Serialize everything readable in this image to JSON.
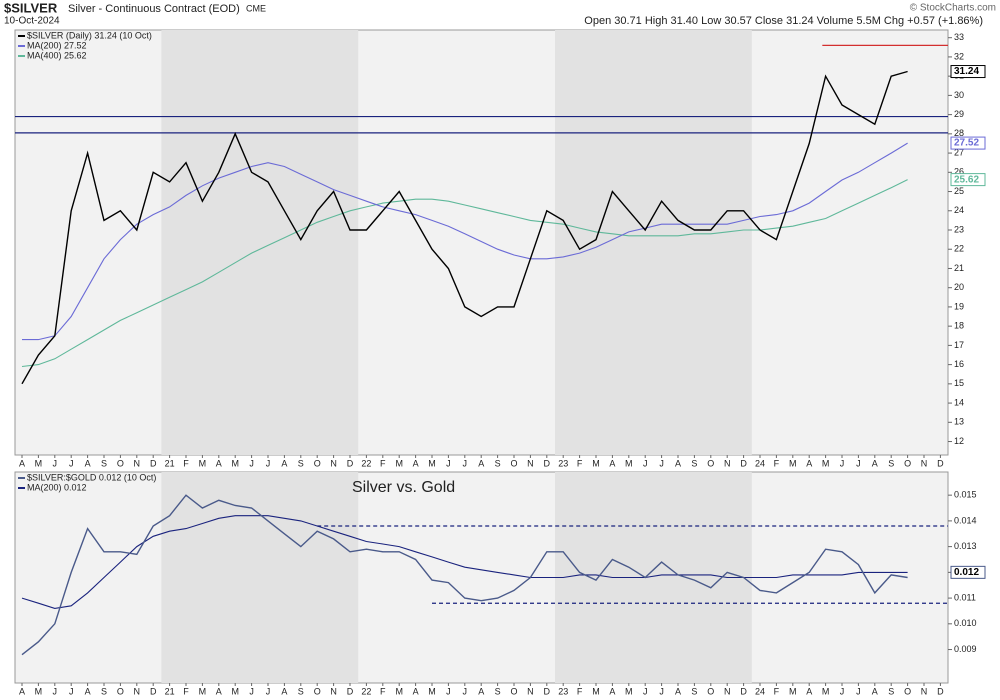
{
  "header": {
    "symbol": "$SILVER",
    "name": "Silver - Continuous Contract (EOD)",
    "exchange": "CME",
    "date": "10-Oct-2024",
    "quote": "Open 30.71  High 31.40  Low 30.57  Close 31.24  Volume 5.5M  Chg +0.57 (+1.86%)",
    "copyright": "© StockCharts.com"
  },
  "chart_data": [
    {
      "type": "line",
      "categories": [
        "A",
        "M",
        "J",
        "J",
        "A",
        "S",
        "O",
        "N",
        "D",
        "21",
        "F",
        "M",
        "A",
        "M",
        "J",
        "J",
        "A",
        "S",
        "O",
        "N",
        "D",
        "22",
        "F",
        "M",
        "A",
        "M",
        "J",
        "J",
        "A",
        "S",
        "O",
        "N",
        "D",
        "23",
        "F",
        "M",
        "A",
        "M",
        "J",
        "J",
        "A",
        "S",
        "O",
        "N",
        "D",
        "24",
        "F",
        "M",
        "A",
        "M",
        "J",
        "J",
        "A",
        "S",
        "O",
        "N",
        "D"
      ],
      "series": [
        {
          "name": "$SILVER (Daily) 31.24 (10 Oct)",
          "color": "#000000",
          "values": [
            15,
            16.5,
            17.5,
            24,
            27,
            23.5,
            24,
            23,
            26,
            25.5,
            26.5,
            24.5,
            26,
            28,
            26,
            25.5,
            24,
            22.5,
            24,
            25,
            23,
            23,
            24,
            25,
            23.5,
            22,
            21,
            19,
            18.5,
            19,
            19,
            21.5,
            24,
            23.5,
            22,
            22.5,
            25,
            24,
            23,
            24.5,
            23.5,
            23,
            23,
            24,
            24,
            23,
            22.5,
            25,
            27.5,
            31,
            29.5,
            29,
            28.5,
            31,
            31.24,
            null,
            null
          ]
        },
        {
          "name": "MA(200) 27.52",
          "color": "#6b6bd6",
          "values": [
            17.3,
            17.3,
            17.5,
            18.5,
            20,
            21.5,
            22.5,
            23.3,
            23.8,
            24.2,
            24.8,
            25.3,
            25.7,
            26,
            26.3,
            26.5,
            26.3,
            25.9,
            25.5,
            25.1,
            24.8,
            24.5,
            24.2,
            24,
            23.8,
            23.5,
            23.2,
            22.8,
            22.4,
            22,
            21.7,
            21.5,
            21.5,
            21.6,
            21.8,
            22.1,
            22.5,
            22.9,
            23.1,
            23.3,
            23.3,
            23.3,
            23.3,
            23.3,
            23.5,
            23.7,
            23.8,
            24,
            24.4,
            25,
            25.6,
            26,
            26.5,
            27,
            27.52,
            null,
            null
          ]
        },
        {
          "name": "MA(400) 25.62",
          "color": "#5fb89a",
          "values": [
            15.9,
            16,
            16.3,
            16.8,
            17.3,
            17.8,
            18.3,
            18.7,
            19.1,
            19.5,
            19.9,
            20.3,
            20.8,
            21.3,
            21.8,
            22.2,
            22.6,
            23,
            23.4,
            23.7,
            24,
            24.2,
            24.4,
            24.5,
            24.6,
            24.6,
            24.5,
            24.3,
            24.1,
            23.9,
            23.7,
            23.5,
            23.4,
            23.3,
            23.1,
            22.9,
            22.8,
            22.7,
            22.7,
            22.7,
            22.7,
            22.8,
            22.8,
            22.9,
            23,
            23,
            23.1,
            23.2,
            23.4,
            23.6,
            24,
            24.4,
            24.8,
            25.2,
            25.62,
            null,
            null
          ]
        }
      ],
      "hlines": [
        {
          "value": 28.9,
          "color": "#1a237e"
        },
        {
          "value": 28.05,
          "color": "#1a237e"
        },
        {
          "value": 32.6,
          "color": "#d32f2f"
        }
      ],
      "tags": [
        31.24,
        27.52,
        25.62
      ],
      "ylim": [
        11.3,
        33.4
      ],
      "yticks": [
        12,
        13,
        14,
        15,
        16,
        17,
        18,
        19,
        20,
        21,
        22,
        23,
        24,
        25,
        26,
        27,
        28,
        29,
        30,
        31,
        32,
        33
      ]
    },
    {
      "type": "line",
      "title": "Silver vs. Gold",
      "categories": [
        "A",
        "M",
        "J",
        "J",
        "A",
        "S",
        "O",
        "N",
        "D",
        "21",
        "F",
        "M",
        "A",
        "M",
        "J",
        "J",
        "A",
        "S",
        "O",
        "N",
        "D",
        "22",
        "F",
        "M",
        "A",
        "M",
        "J",
        "J",
        "A",
        "S",
        "O",
        "N",
        "D",
        "23",
        "F",
        "M",
        "A",
        "M",
        "J",
        "J",
        "A",
        "S",
        "O",
        "N",
        "D",
        "24",
        "F",
        "M",
        "A",
        "M",
        "J",
        "J",
        "A",
        "S",
        "O",
        "N",
        "D"
      ],
      "series": [
        {
          "name": "$SILVER:$GOLD 0.012 (10 Oct)",
          "color": "#4a5a8a",
          "values": [
            0.0088,
            0.0093,
            0.01,
            0.012,
            0.0137,
            0.0128,
            0.0128,
            0.0127,
            0.0138,
            0.0142,
            0.015,
            0.0145,
            0.0148,
            0.0146,
            0.0145,
            0.014,
            0.0135,
            0.013,
            0.0136,
            0.0133,
            0.0128,
            0.0129,
            0.0128,
            0.0128,
            0.0125,
            0.0117,
            0.0116,
            0.011,
            0.0109,
            0.011,
            0.0113,
            0.0118,
            0.0128,
            0.0128,
            0.012,
            0.0117,
            0.0125,
            0.0122,
            0.0118,
            0.0124,
            0.0119,
            0.0117,
            0.0114,
            0.012,
            0.0118,
            0.0113,
            0.0112,
            0.0116,
            0.012,
            0.0129,
            0.0128,
            0.0123,
            0.0112,
            0.0119,
            0.0118,
            null,
            null
          ]
        },
        {
          "name": "MA(200) 0.012",
          "color": "#1a237e",
          "values": [
            0.011,
            0.0108,
            0.0106,
            0.0107,
            0.0112,
            0.0118,
            0.0124,
            0.013,
            0.0134,
            0.0136,
            0.0137,
            0.0139,
            0.0141,
            0.0142,
            0.0142,
            0.0142,
            0.0141,
            0.014,
            0.0138,
            0.0136,
            0.0134,
            0.0132,
            0.0131,
            0.013,
            0.0128,
            0.0126,
            0.0124,
            0.0122,
            0.0121,
            0.012,
            0.0119,
            0.0118,
            0.0118,
            0.0118,
            0.0119,
            0.0119,
            0.0118,
            0.0118,
            0.0118,
            0.0119,
            0.0119,
            0.0119,
            0.0119,
            0.0118,
            0.0118,
            0.0118,
            0.0118,
            0.0119,
            0.0119,
            0.0119,
            0.0119,
            0.012,
            0.012,
            0.012,
            0.012,
            null,
            null
          ]
        }
      ],
      "hlines": [
        {
          "value": 0.0138,
          "color": "#1a237e"
        },
        {
          "value": 0.0108,
          "color": "#1a237e"
        }
      ],
      "tags": [
        0.012
      ],
      "ylim": [
        0.0077,
        0.0159
      ],
      "yticks": [
        0.009,
        {
          "value": 0.01,
          "label": "0.010"
        },
        0.011,
        0.012,
        0.013,
        0.014,
        0.015
      ]
    }
  ]
}
